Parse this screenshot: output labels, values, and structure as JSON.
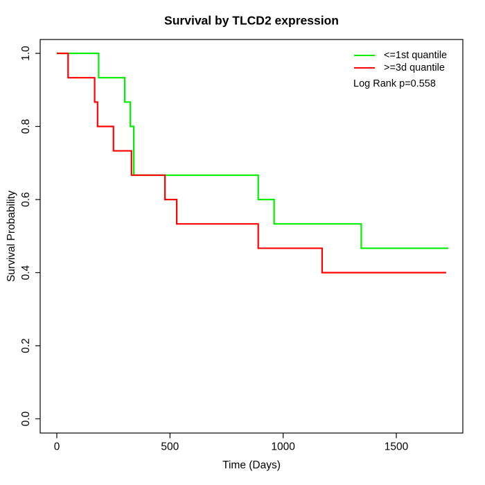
{
  "chart_data": {
    "type": "line",
    "subtype": "kaplan-meier-step",
    "title": "Survival by TLCD2 expression",
    "xlabel": "Time (Days)",
    "ylabel": "Survival Probability",
    "x_ticks": [
      0,
      500,
      1000,
      1500
    ],
    "y_ticks": [
      "0.0",
      "0.2",
      "0.4",
      "0.6",
      "0.8",
      "1.0"
    ],
    "xlim": [
      0,
      1795
    ],
    "ylim": [
      0.0,
      1.0
    ],
    "grid": false,
    "legend_position": "top-right",
    "annotation": "Log Rank p=0.558",
    "axis_color": "#000000",
    "background": "#FFFFFF",
    "series": [
      {
        "name": "<=1st quantile",
        "color": "#00EE00",
        "start": [
          0,
          1.0
        ],
        "steps": [
          [
            185,
            0.9333
          ],
          [
            300,
            0.8667
          ],
          [
            325,
            0.8
          ],
          [
            340,
            0.6667
          ],
          [
            890,
            0.6
          ],
          [
            960,
            0.5333
          ],
          [
            1345,
            0.4667
          ]
        ],
        "end_time": 1730,
        "final_survival": 0.4667
      },
      {
        "name": ">=3d quantile",
        "color": "#FF0000",
        "start": [
          0,
          1.0
        ],
        "steps": [
          [
            50,
            0.9333
          ],
          [
            167,
            0.8667
          ],
          [
            180,
            0.8
          ],
          [
            250,
            0.7333
          ],
          [
            330,
            0.6667
          ],
          [
            478,
            0.6
          ],
          [
            530,
            0.5333
          ],
          [
            890,
            0.4667
          ],
          [
            1172,
            0.4
          ]
        ],
        "end_time": 1720,
        "final_survival": 0.4
      }
    ]
  }
}
